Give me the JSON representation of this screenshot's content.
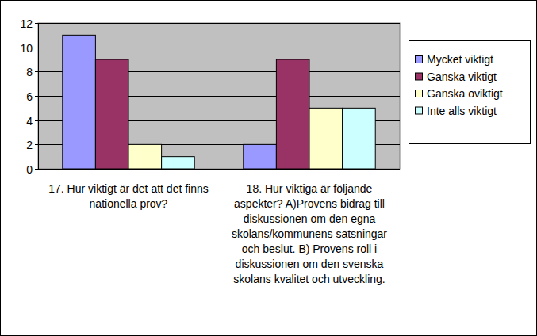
{
  "chart_data": {
    "type": "bar",
    "categories": [
      "17. Hur viktigt är det att det finns nationella prov?",
      "18. Hur viktiga är följande aspekter? A)Provens bidrag till diskussionen om den egna skolans/kommunens satsningar och beslut. B) Provens roll i diskussionen om den svenska skolans kvalitet och utveckling."
    ],
    "series": [
      {
        "name": "Mycket viktigt",
        "color": "#9999ff",
        "values": [
          11,
          2
        ]
      },
      {
        "name": "Ganska viktigt",
        "color": "#993366",
        "values": [
          9,
          9
        ]
      },
      {
        "name": "Ganska oviktigt",
        "color": "#ffffcc",
        "values": [
          2,
          5
        ]
      },
      {
        "name": "Inte alls viktigt",
        "color": "#ccffff",
        "values": [
          1,
          5
        ]
      }
    ],
    "ylim": [
      0,
      12
    ],
    "yticks": [
      0,
      2,
      4,
      6,
      8,
      10,
      12
    ],
    "grid": true,
    "legend": "right"
  }
}
